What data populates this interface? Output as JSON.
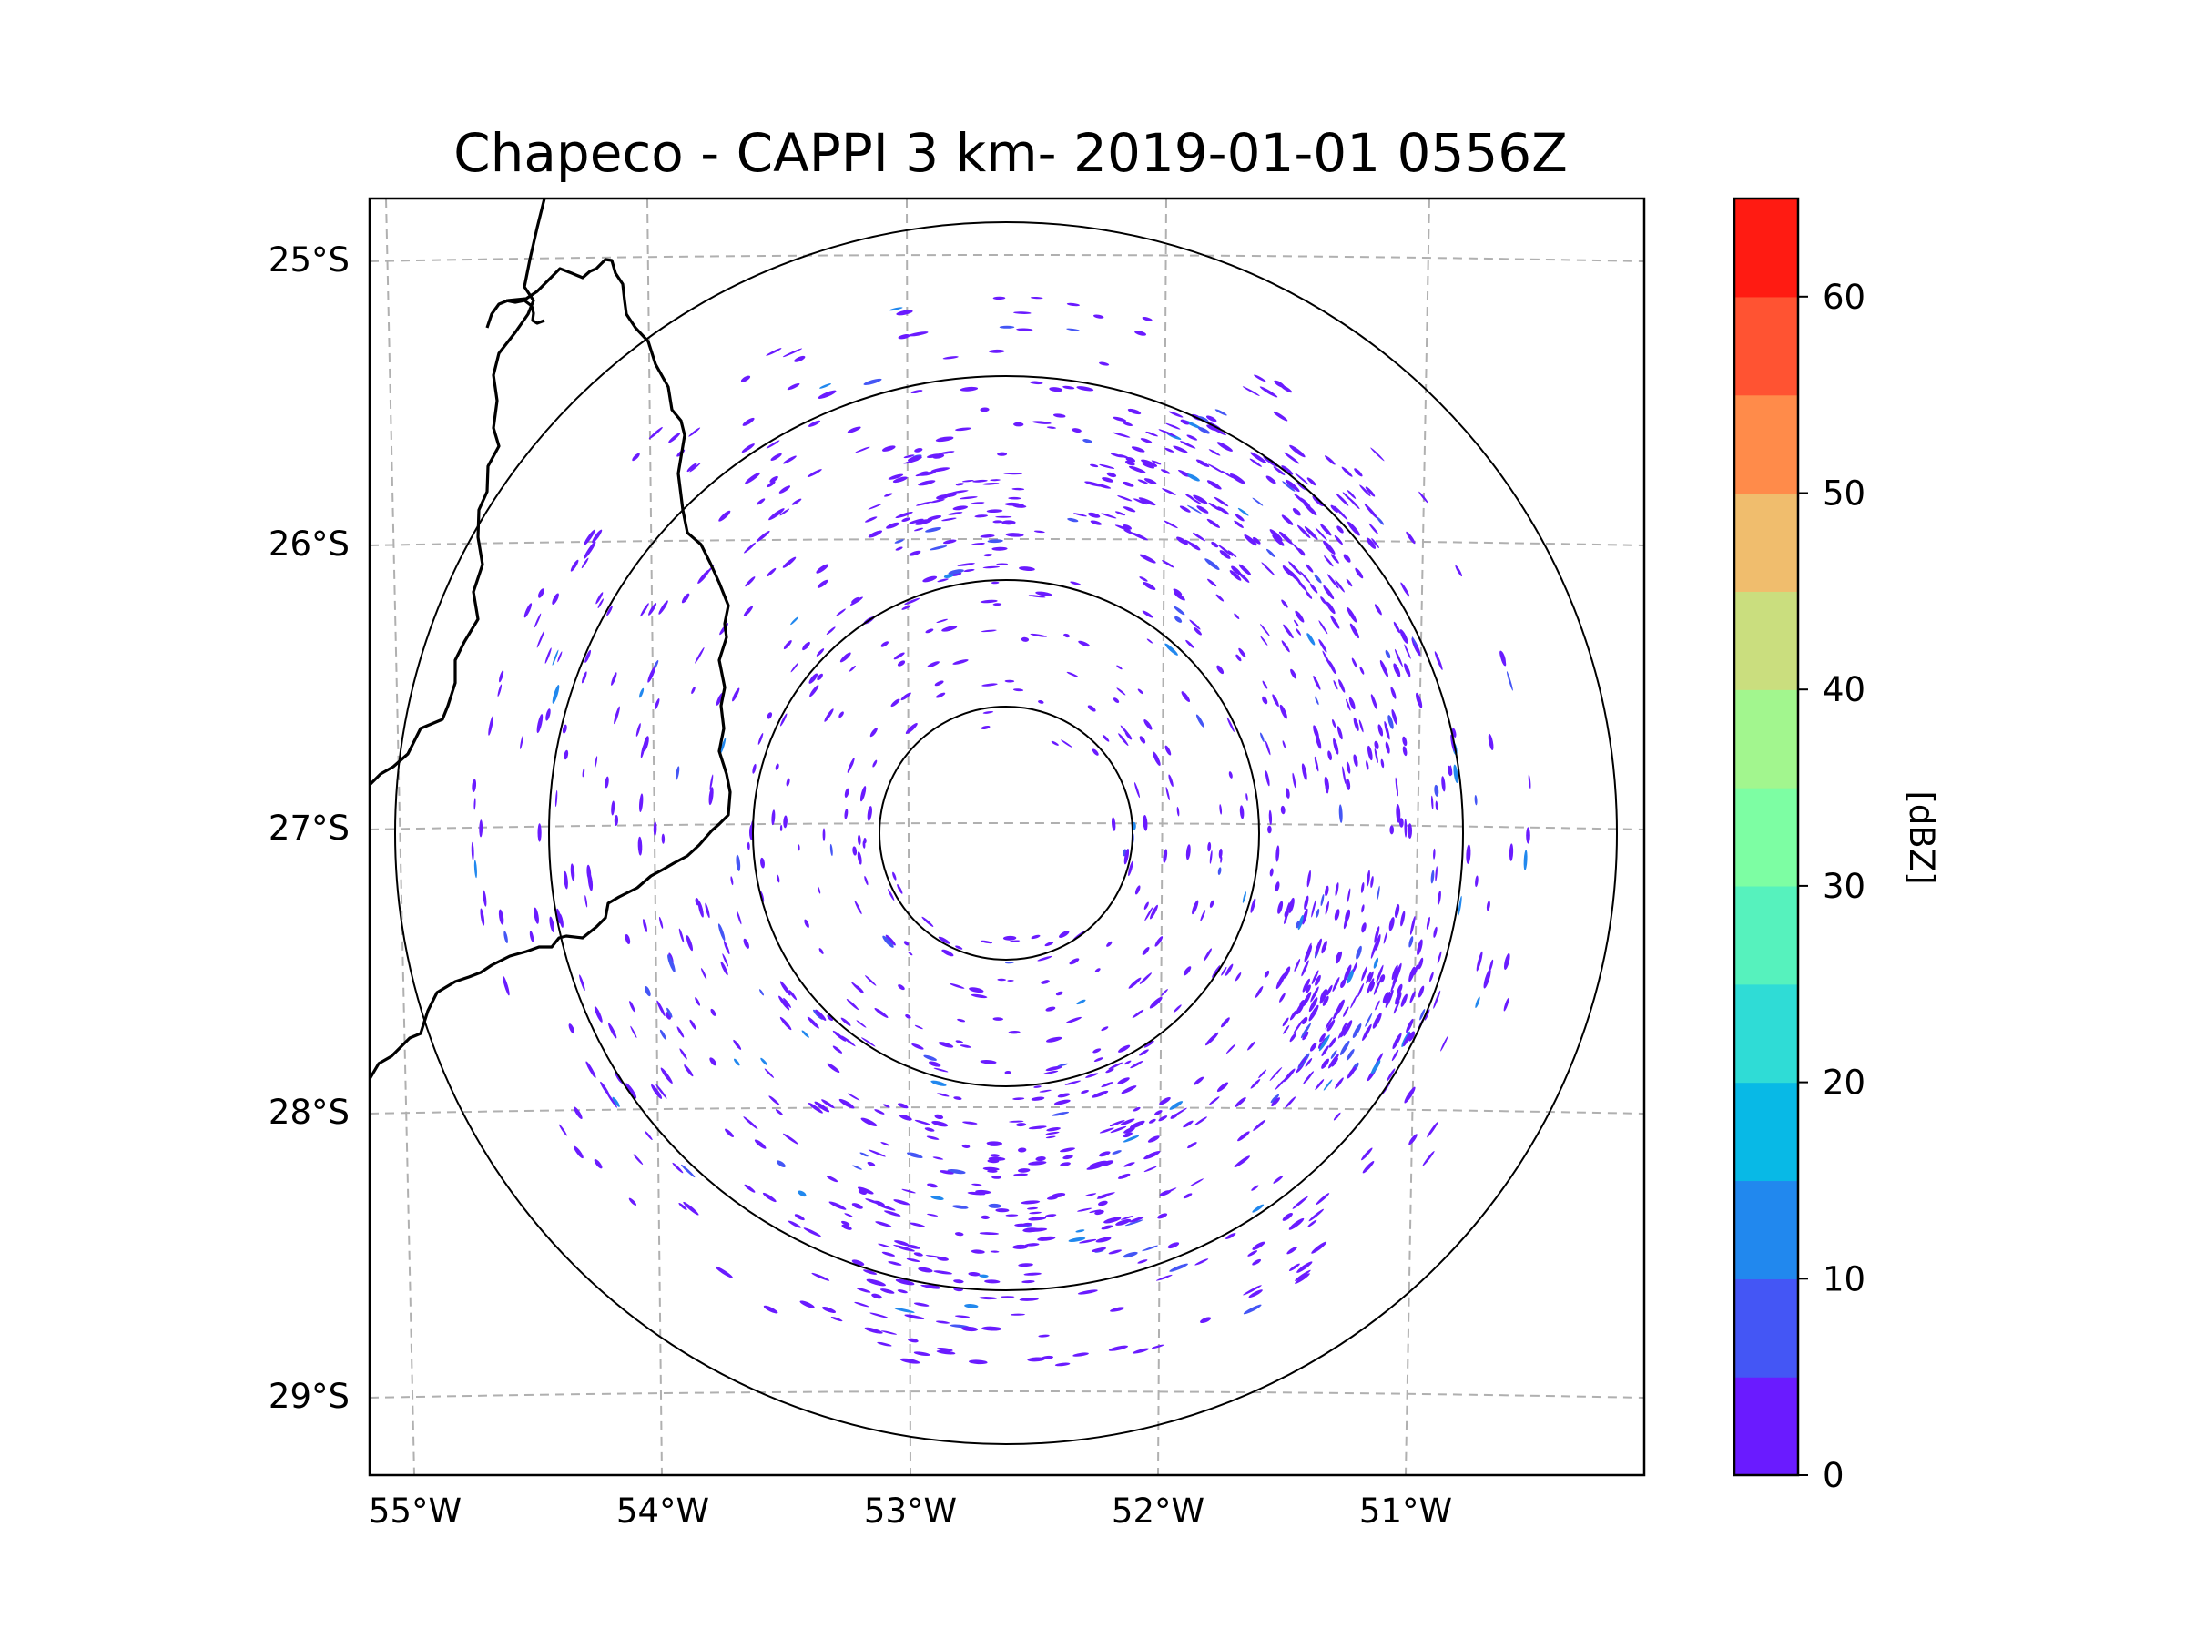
{
  "title": "Chapeco - CAPPI 3 km- 2019-01-01 0556Z",
  "colorbar": {
    "label": "[dBZ]",
    "ticks": [
      "0",
      "10",
      "20",
      "30",
      "40",
      "50",
      "60"
    ],
    "tick_values": [
      0,
      10,
      20,
      30,
      40,
      50,
      60
    ],
    "range": [
      0,
      65
    ],
    "colors": [
      "#6a1bff",
      "#4456f5",
      "#2188ee",
      "#08b9e6",
      "#2fdcd6",
      "#56f2bd",
      "#7dfea3",
      "#a2f68e",
      "#cade7e",
      "#f0bd6d",
      "#ff8b4a",
      "#ff5332",
      "#ff1b12"
    ]
  },
  "axes": {
    "lat_ticks": [
      "25°S",
      "26°S",
      "27°S",
      "28°S",
      "29°S"
    ],
    "lon_ticks": [
      "55°W",
      "54°W",
      "53°W",
      "52°W",
      "51°W"
    ],
    "lat_values": [
      -25,
      -26,
      -27,
      -28,
      -29
    ],
    "lon_values": [
      -55,
      -54,
      -53,
      -52,
      -51
    ]
  },
  "radar": {
    "site": "Chapeco",
    "range_rings_count": 4
  },
  "colors": {
    "grid": "#b0b0b0",
    "border": "#000000",
    "echo_main": "#6a1bff",
    "echo_weak": "#4456f5",
    "echo_light": "#2188ee"
  }
}
